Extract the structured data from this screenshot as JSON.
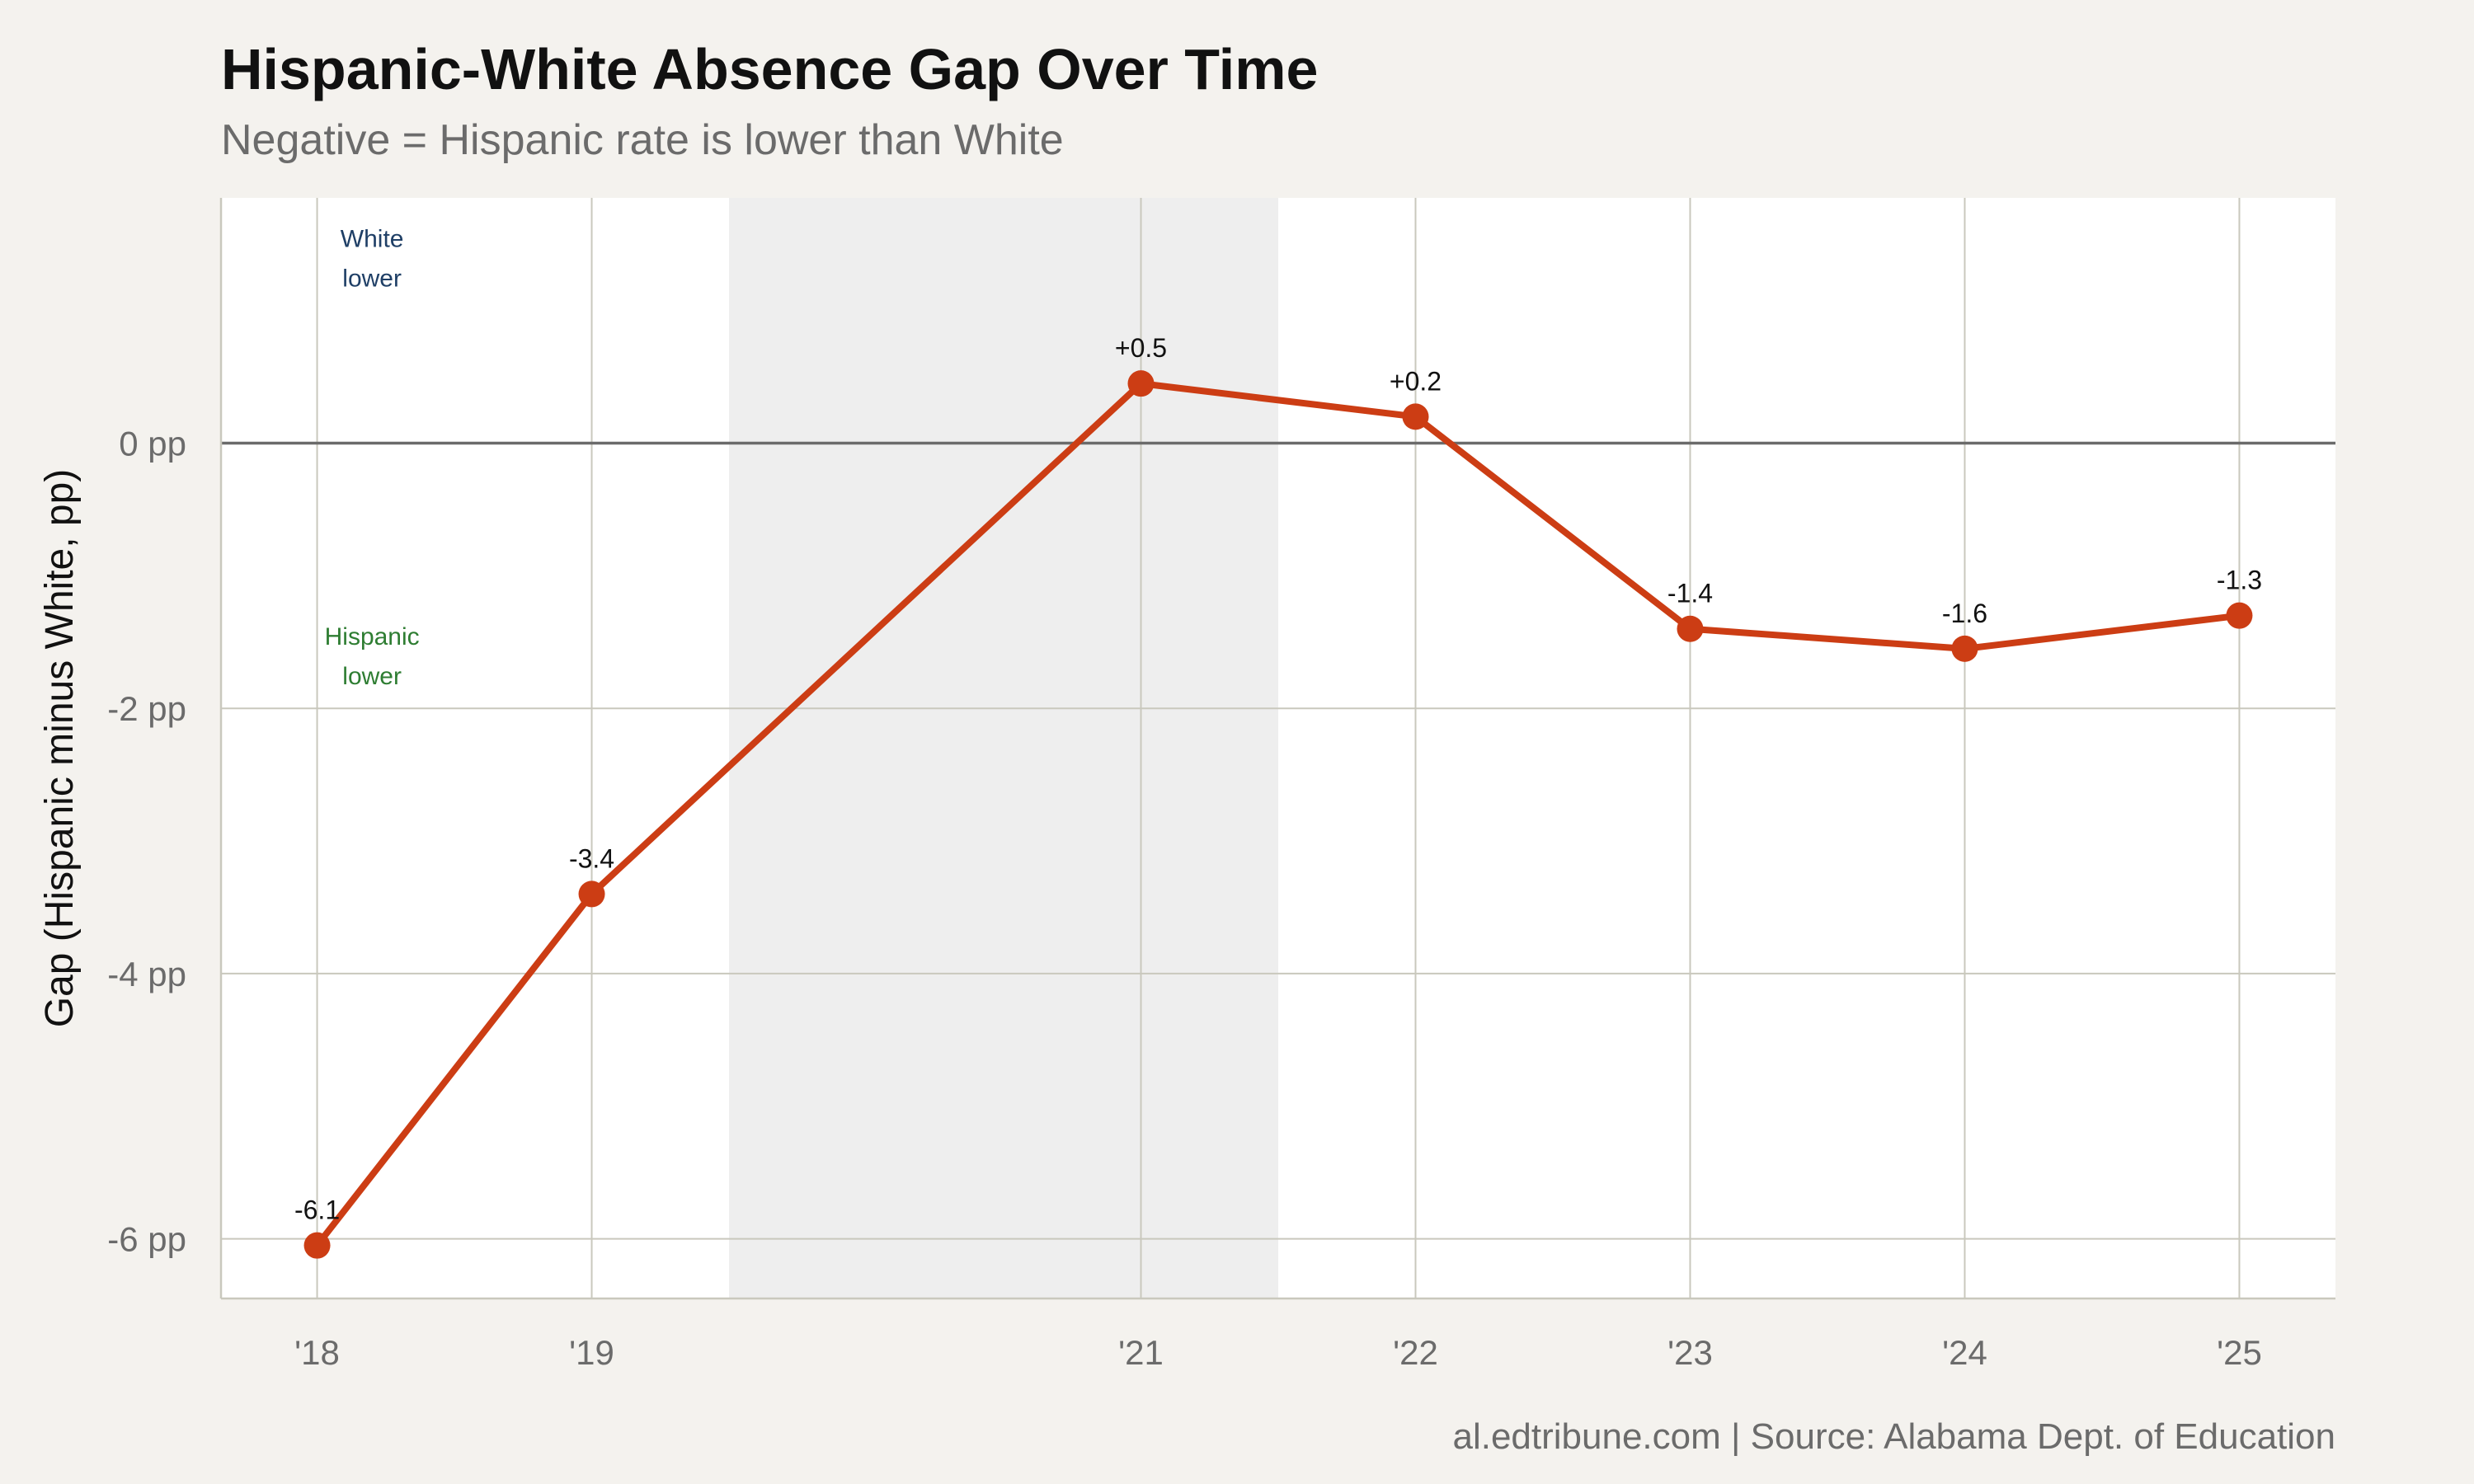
{
  "title": "Hispanic-White Absence Gap Over Time",
  "subtitle": "Negative = Hispanic rate is lower than White",
  "caption": "al.edtribune.com | Source: Alabama Dept. of Education",
  "chart_data": {
    "type": "line",
    "title": "Hispanic-White Absence Gap Over Time",
    "subtitle": "Negative = Hispanic rate is lower than White",
    "xlabel": "",
    "ylabel": "Gap (Hispanic minus White, pp)",
    "x": [
      2018,
      2019,
      2021,
      2022,
      2023,
      2024,
      2025
    ],
    "x_tick_labels": [
      "'18",
      "'19",
      "'21",
      "'22",
      "'23",
      "'24",
      "'25"
    ],
    "y_ticks": [
      0,
      -2,
      -4,
      -6
    ],
    "y_tick_labels": [
      "0 pp",
      "-2 pp",
      "-4 pp",
      "-6 pp"
    ],
    "xlim": [
      2017.65,
      2025.35
    ],
    "ylim": [
      -6.45,
      1.85
    ],
    "grid": true,
    "reference_line_y": 0,
    "shaded_period": [
      2019.5,
      2021.5
    ],
    "series": [
      {
        "values": [
          -6.05,
          -3.4,
          0.45,
          0.2,
          -1.4,
          -1.55,
          -1.3
        ],
        "data_labels": [
          "-6.1",
          "-3.4",
          "+0.5",
          "+0.2",
          "-1.4",
          "-1.6",
          "-1.3"
        ],
        "color": "#cc3d14"
      }
    ],
    "annotations": [
      {
        "lines": [
          "White",
          "lower"
        ],
        "x": 2018.2,
        "y": 1.4,
        "color": "#1f3f66"
      },
      {
        "lines": [
          "Hispanic",
          "lower"
        ],
        "x": 2018.2,
        "y": -1.6,
        "color": "#2e7d32"
      }
    ]
  },
  "colors": {
    "background": "#f4f2ee",
    "panel": "#ffffff",
    "grid": "#c9c8bd",
    "shade": "#eeeeee",
    "zero_line": "#6b6b6b"
  }
}
